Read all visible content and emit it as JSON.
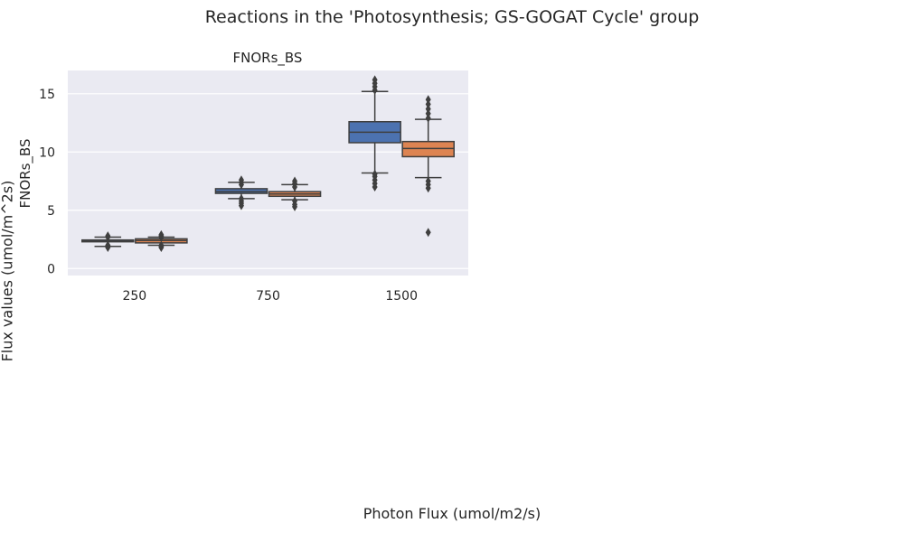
{
  "figure": {
    "title": "Reactions in the 'Photosynthesis; GS-GOGAT Cycle' group",
    "xlabel": "Photon Flux (umol/m2/s)",
    "ylabel": "Flux values (umol/m^2s)"
  },
  "colors": {
    "background": "#eaeaf2",
    "grid": "#ffffff",
    "series_blue": "#4c72b0",
    "series_orange": "#dd8452",
    "line": "#3f3f3f"
  },
  "chart_data": {
    "type": "box",
    "title": "FNORs_BS",
    "xlabel": "",
    "ylabel": "FNORs_BS",
    "categories": [
      "250",
      "750",
      "1500"
    ],
    "ylim": [
      -0.6,
      17.0
    ],
    "yticks": [
      0,
      5,
      10,
      15
    ],
    "grid": true,
    "legend": "none",
    "series": [
      {
        "color": "#4c72b0",
        "boxes": [
          {
            "category": "250",
            "whislo": 1.9,
            "q1": 2.3,
            "median": 2.35,
            "q3": 2.45,
            "whishi": 2.7,
            "fliers": [
              1.8,
              1.9,
              2.0,
              2.7,
              2.8
            ]
          },
          {
            "category": "750",
            "whislo": 6.0,
            "q1": 6.45,
            "median": 6.6,
            "q3": 6.85,
            "whishi": 7.4,
            "fliers": [
              5.4,
              5.6,
              5.8,
              6.0,
              7.2,
              7.4,
              7.6
            ]
          },
          {
            "category": "1500",
            "whislo": 8.2,
            "q1": 10.8,
            "median": 11.7,
            "q3": 12.6,
            "whishi": 15.2,
            "fliers": [
              7.0,
              7.3,
              7.6,
              7.9,
              8.1,
              15.3,
              15.6,
              15.9,
              16.2
            ]
          }
        ]
      },
      {
        "color": "#dd8452",
        "boxes": [
          {
            "category": "250",
            "whislo": 2.0,
            "q1": 2.2,
            "median": 2.4,
            "q3": 2.55,
            "whishi": 2.7,
            "fliers": [
              1.8,
              1.9,
              2.0,
              2.7,
              2.8,
              2.9
            ]
          },
          {
            "category": "750",
            "whislo": 5.9,
            "q1": 6.2,
            "median": 6.4,
            "q3": 6.6,
            "whishi": 7.2,
            "fliers": [
              5.3,
              5.5,
              5.8,
              7.0,
              7.3,
              7.5
            ]
          },
          {
            "category": "1500",
            "whislo": 7.8,
            "q1": 9.6,
            "median": 10.3,
            "q3": 10.9,
            "whishi": 12.8,
            "fliers": [
              3.1,
              6.9,
              7.2,
              7.5,
              12.9,
              13.3,
              13.7,
              14.1,
              14.5
            ]
          }
        ]
      }
    ]
  }
}
